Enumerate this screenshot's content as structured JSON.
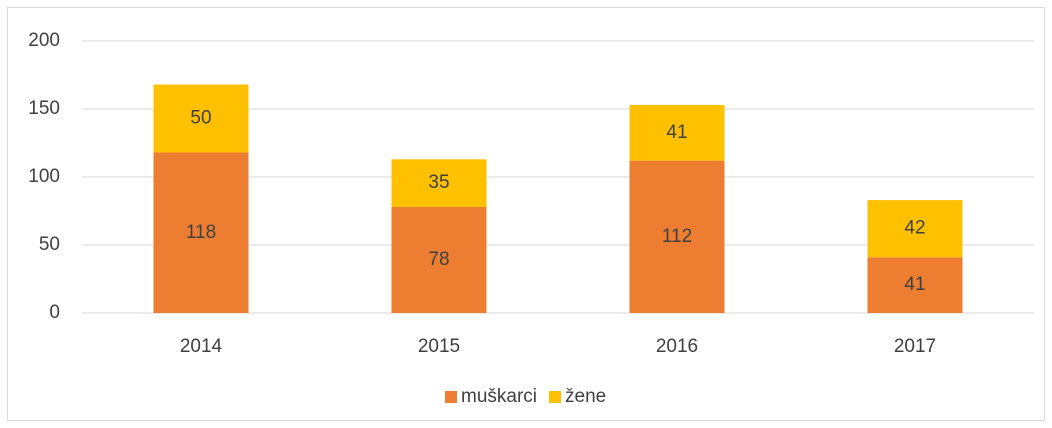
{
  "chart_data": {
    "type": "stacked_bar",
    "categories": [
      "2014",
      "2015",
      "2016",
      "2017"
    ],
    "series": [
      {
        "name": "muškarci",
        "color": "#ed7d31",
        "values": [
          118,
          78,
          112,
          41
        ]
      },
      {
        "name": "žene",
        "color": "#ffc000",
        "values": [
          50,
          35,
          41,
          42
        ]
      }
    ],
    "ylim": [
      0,
      200
    ],
    "yticks": [
      0,
      50,
      100,
      150,
      200
    ],
    "grid": true,
    "legend": "bottom"
  }
}
